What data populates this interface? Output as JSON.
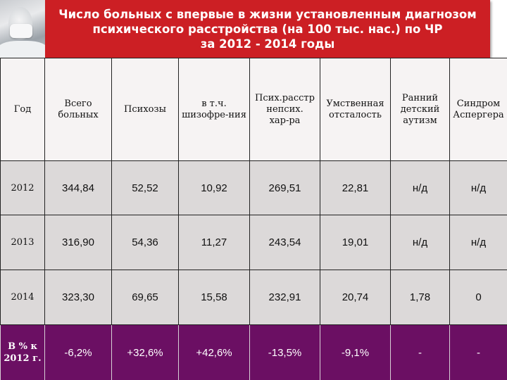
{
  "title": "Число больных с впервые в жизни установленным диагнозом\nпсихического расстройства (на 100 тыс. нас.) по ЧР\nза 2012 - 2014 годы",
  "colors": {
    "title_bg": "#cc1f24",
    "title_text": "#ffffff",
    "header_bg": "#f6f3f3",
    "row_bg": "#dcd9d9",
    "percent_row_bg": "#6b0f63"
  },
  "table": {
    "headers": [
      "Год",
      "Всего\nбольных",
      "Психозы",
      "в т.ч.\nшизофре-ния",
      "Псих.расстр\nнепсих.\nхар-ра",
      "Умственная\nотсталость",
      "Ранний\nдетский\nаутизм",
      "Синдром\nАспергера"
    ],
    "rows": [
      {
        "year": "2012",
        "cells": [
          "344,84",
          "52,52",
          "10,92",
          "269,51",
          "22,81",
          "н/д",
          "н/д"
        ]
      },
      {
        "year": "2013",
        "cells": [
          "316,90",
          "54,36",
          "11,27",
          "243,54",
          "19,01",
          "н/д",
          "н/д"
        ]
      },
      {
        "year": "2014",
        "cells": [
          "323,30",
          "69,65",
          "15,58",
          "232,91",
          "20,74",
          "1,78",
          "0"
        ]
      }
    ],
    "percent_row": {
      "label": "В % к\n2012 г.",
      "cells": [
        "-6,2%",
        "+32,6%",
        "+42,6%",
        "-13,5%",
        "-9,1%",
        "-",
        "-"
      ]
    }
  }
}
